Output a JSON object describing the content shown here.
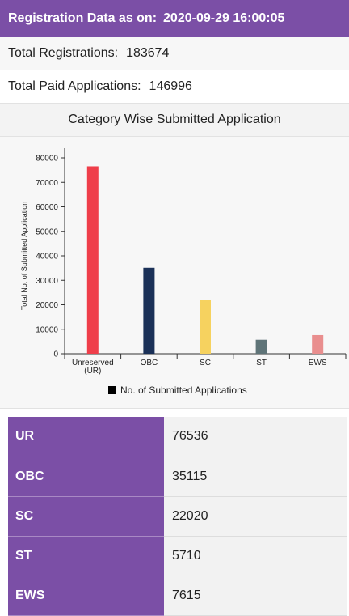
{
  "header": {
    "label": "Registration Data as on:",
    "datetime": "2020-09-29 16:00:05"
  },
  "stats": {
    "total_registrations_label": "Total Registrations:",
    "total_registrations_value": "183674",
    "total_paid_label": "Total Paid Applications:",
    "total_paid_value": "146996"
  },
  "chart_section": {
    "title": "Category Wise Submitted Application"
  },
  "chart_data": {
    "type": "bar",
    "categories": [
      "Unreserved\n(UR)",
      "OBC",
      "SC",
      "ST",
      "EWS"
    ],
    "series": [
      {
        "name": "No. of Submitted Applications",
        "values": [
          76536,
          35115,
          22020,
          5710,
          7615
        ],
        "colors": [
          "#ef3e4a",
          "#1b3158",
          "#f6d25f",
          "#5f7478",
          "#e98e8e"
        ]
      }
    ],
    "ylabel": "Total No. of Submitted Application",
    "xlabel": "",
    "ylim": [
      0,
      80000
    ],
    "yticks": [
      0,
      10000,
      20000,
      30000,
      40000,
      50000,
      60000,
      70000,
      80000
    ],
    "legend_position": "bottom",
    "legend_color": "#000000"
  },
  "table": {
    "rows": [
      {
        "key": "UR",
        "value": "76536"
      },
      {
        "key": "OBC",
        "value": "35115"
      },
      {
        "key": "SC",
        "value": "22020"
      },
      {
        "key": "ST",
        "value": "5710"
      },
      {
        "key": "EWS",
        "value": "7615"
      }
    ]
  }
}
